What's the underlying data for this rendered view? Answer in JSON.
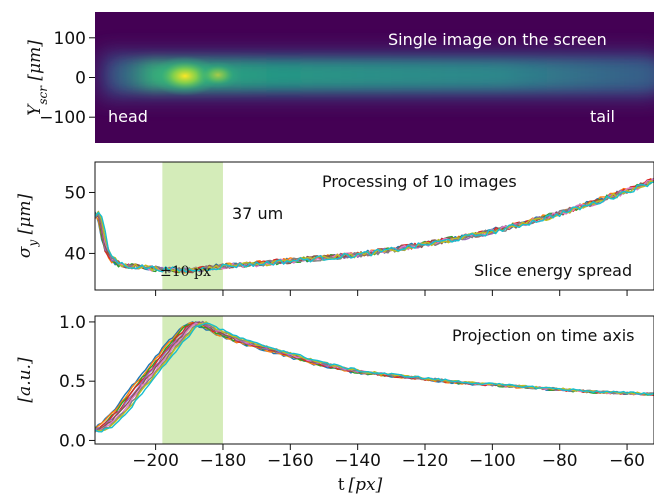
{
  "chart_data": [
    {
      "type": "heatmap",
      "panel": "top",
      "ylabel": "Y_scr [μm]",
      "ylabel_main": "Y",
      "ylabel_sub": "scr",
      "ylabel_unit": " [μm]",
      "ylim": [
        -165,
        165
      ],
      "yticks": [
        100,
        0,
        -100
      ],
      "ytick_labels": [
        "100",
        "0",
        "−100"
      ],
      "annotations": {
        "title": "Single image on the screen",
        "left": "head",
        "right": "tail"
      },
      "colormap": [
        "#440154",
        "#31688e",
        "#35b779",
        "#fde725"
      ]
    },
    {
      "type": "line",
      "panel": "middle",
      "ylabel": "σ_y [μm]",
      "ylabel_main": "σ",
      "ylabel_sub": "y",
      "ylabel_unit": " [μm]",
      "ylim": [
        34,
        55
      ],
      "yticks": [
        40,
        50
      ],
      "ytick_labels": [
        "40",
        "50"
      ],
      "annotations": {
        "title": "Processing of 10 images",
        "value": "37 um",
        "band": "±10 px",
        "subtitle": "Slice energy spread"
      },
      "band_x": [
        -198,
        -180
      ],
      "band_color": "#d4ecb9",
      "x": [
        -218,
        -217,
        -216,
        -215,
        -213,
        -210,
        -205,
        -200,
        -195,
        -190,
        -185,
        -180,
        -170,
        -160,
        -150,
        -140,
        -130,
        -120,
        -110,
        -100,
        -90,
        -80,
        -70,
        -60,
        -52
      ],
      "series_mean": [
        46,
        47,
        44.5,
        41,
        39,
        38,
        37.8,
        37.5,
        37.3,
        37.2,
        37.6,
        37.9,
        38.3,
        38.8,
        39.3,
        39.8,
        40.6,
        41.5,
        42.5,
        43.6,
        45,
        46.6,
        48.3,
        50.3,
        52
      ]
    },
    {
      "type": "line",
      "panel": "bottom",
      "ylabel": "[a.u.]",
      "xlabel": "t [px]",
      "xlabel_main": "t",
      "xlabel_unit": "[px]",
      "ylim": [
        -0.03,
        1.05
      ],
      "yticks": [
        0.0,
        0.5,
        1.0
      ],
      "ytick_labels": [
        "0.0",
        "0.5",
        "1.0"
      ],
      "xlim": [
        -218,
        -52
      ],
      "xticks": [
        -200,
        -180,
        -160,
        -140,
        -120,
        -100,
        -80,
        -60
      ],
      "xtick_labels": [
        "−200",
        "−180",
        "−160",
        "−140",
        "−120",
        "−100",
        "−80",
        "−60"
      ],
      "annotations": {
        "title": "Projection on time axis"
      },
      "band_x": [
        -198,
        -180
      ],
      "x": [
        -218,
        -215,
        -210,
        -205,
        -200,
        -195,
        -190,
        -187,
        -184,
        -180,
        -175,
        -170,
        -160,
        -150,
        -140,
        -130,
        -120,
        -110,
        -100,
        -90,
        -80,
        -70,
        -60,
        -52
      ],
      "series_mean": [
        0.08,
        0.12,
        0.26,
        0.45,
        0.62,
        0.8,
        0.96,
        1.0,
        0.95,
        0.9,
        0.84,
        0.8,
        0.72,
        0.64,
        0.58,
        0.55,
        0.52,
        0.49,
        0.47,
        0.45,
        0.43,
        0.41,
        0.4,
        0.39
      ]
    }
  ],
  "series_colors": [
    "#1f77b4",
    "#ff7f0e",
    "#2ca02c",
    "#d62728",
    "#9467bd",
    "#8c564b",
    "#e377c2",
    "#7f7f7f",
    "#bcbd22",
    "#17becf"
  ],
  "series_count": 10
}
